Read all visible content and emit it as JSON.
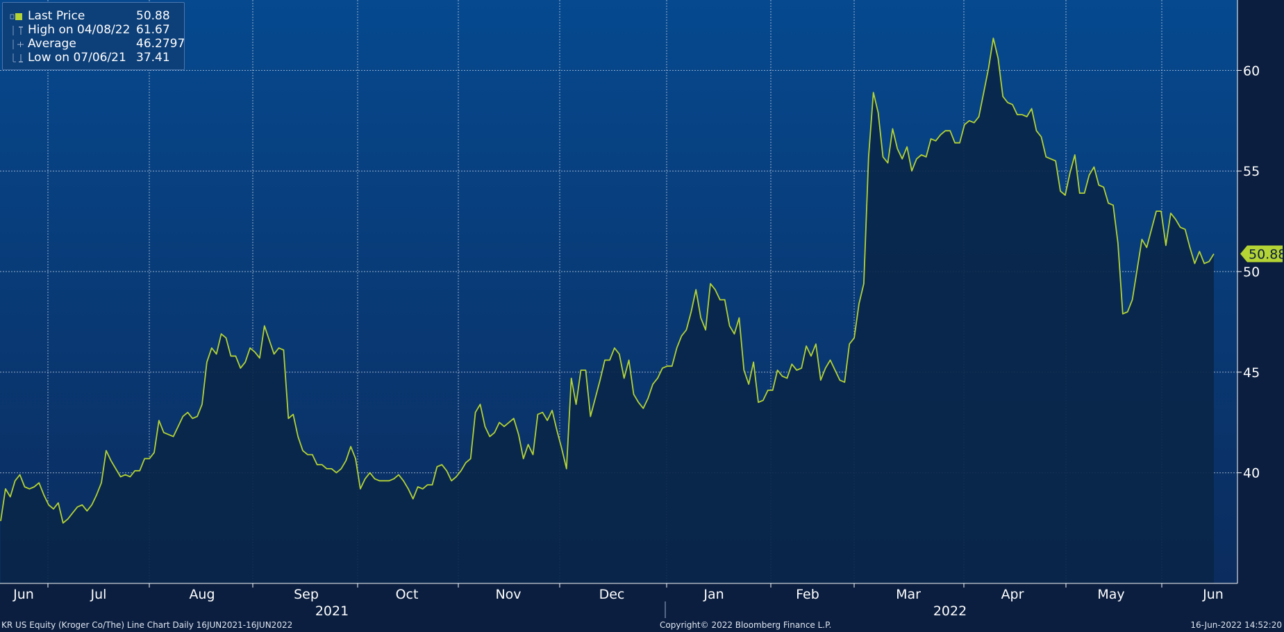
{
  "legend": {
    "rows": [
      {
        "label": "Last Price",
        "value": "50.88",
        "symbol": "square"
      },
      {
        "label": "High on 04/08/22",
        "value": "61.67",
        "symbol": "high"
      },
      {
        "label": "Average",
        "value": "46.2797",
        "symbol": "average"
      },
      {
        "label": "Low on 07/06/21",
        "value": "37.41",
        "symbol": "low"
      }
    ]
  },
  "footer": {
    "left": "KR US Equity (Kroger Co/The) Line Chart  Daily 16JUN2021-16JUN2022",
    "center": "Copyright© 2022 Bloomberg Finance L.P.",
    "right": "16-Jun-2022 14:52:20"
  },
  "colors": {
    "background": "#0b1e3f",
    "plot_top": "#06498f",
    "plot_bottom": "#0b2c5e",
    "line": "#b4d334",
    "fill": "#0a2649"
  },
  "chart_data": {
    "type": "area",
    "ylim": [
      34.5,
      63.5
    ],
    "yticks": [
      40,
      45,
      50,
      55,
      60
    ],
    "grid": true,
    "legend_position": "top-left",
    "last_price_label": "50.88",
    "month_labels": [
      "Jun",
      "Jul",
      "Aug",
      "Sep",
      "Oct",
      "Nov",
      "Dec",
      "Jan",
      "Feb",
      "Mar",
      "Apr",
      "May",
      "Jun"
    ],
    "year_labels": [
      "2021",
      "2022"
    ],
    "series": [
      {
        "values": [
          37.6,
          39.2,
          38.8,
          39.6,
          39.9,
          39.3,
          39.2,
          39.3,
          39.5,
          38.9,
          38.4,
          38.2,
          38.5,
          37.5,
          37.7,
          38.0,
          38.3,
          38.4,
          38.1,
          38.4,
          38.9,
          39.5,
          41.1,
          40.6,
          40.2,
          39.8,
          39.9,
          39.8,
          40.1,
          40.1,
          40.7,
          40.7,
          41.0,
          42.6,
          42.0,
          41.9,
          41.8,
          42.3,
          42.8,
          43.0,
          42.7,
          42.8,
          43.4,
          45.5,
          46.2,
          45.9,
          46.9,
          46.7,
          45.8,
          45.8,
          45.2,
          45.5,
          46.2,
          46.0,
          45.7,
          47.3,
          46.6,
          45.9,
          46.2,
          46.1,
          42.7,
          42.9,
          41.8,
          41.1,
          40.9,
          40.9,
          40.4,
          40.4,
          40.2,
          40.2,
          40.0,
          40.2,
          40.6,
          41.3,
          40.7,
          39.2,
          39.7,
          40.0,
          39.7,
          39.6,
          39.6,
          39.6,
          39.7,
          39.9,
          39.6,
          39.2,
          38.7,
          39.3,
          39.2,
          39.4,
          39.4,
          40.3,
          40.4,
          40.1,
          39.6,
          39.8,
          40.1,
          40.5,
          40.7,
          43.0,
          43.4,
          42.3,
          41.8,
          42.0,
          42.5,
          42.3,
          42.5,
          42.7,
          41.9,
          40.7,
          41.4,
          40.9,
          42.9,
          43.0,
          42.6,
          43.1,
          42.1,
          41.2,
          40.2,
          44.7,
          43.4,
          45.1,
          45.1,
          42.8,
          43.7,
          44.6,
          45.6,
          45.6,
          46.2,
          45.9,
          44.7,
          45.6,
          43.9,
          43.5,
          43.2,
          43.7,
          44.4,
          44.7,
          45.2,
          45.3,
          45.3,
          46.2,
          46.8,
          47.1,
          48.0,
          49.1,
          47.7,
          47.1,
          49.4,
          49.1,
          48.6,
          48.6,
          47.3,
          46.9,
          47.7,
          45.1,
          44.4,
          45.5,
          43.5,
          43.6,
          44.1,
          44.1,
          45.1,
          44.8,
          44.7,
          45.4,
          45.1,
          45.2,
          46.3,
          45.8,
          46.4,
          44.6,
          45.2,
          45.6,
          45.1,
          44.6,
          44.5,
          46.4,
          46.7,
          48.4,
          49.4,
          55.7,
          58.9,
          57.9,
          55.7,
          55.4,
          57.1,
          56.1,
          55.6,
          56.2,
          55.0,
          55.6,
          55.8,
          55.7,
          56.6,
          56.5,
          56.8,
          57.0,
          57.0,
          56.4,
          56.4,
          57.3,
          57.5,
          57.4,
          57.7,
          58.9,
          60.1,
          61.6,
          60.6,
          58.7,
          58.4,
          58.3,
          57.8,
          57.8,
          57.7,
          58.1,
          57.0,
          56.7,
          55.7,
          55.6,
          55.5,
          54.0,
          53.8,
          54.9,
          55.8,
          53.9,
          53.9,
          54.8,
          55.2,
          54.3,
          54.2,
          53.4,
          53.3,
          51.4,
          47.9,
          48.0,
          48.6,
          50.1,
          51.6,
          51.2,
          52.1,
          53.0,
          53.0,
          51.3,
          52.9,
          52.6,
          52.2,
          52.1,
          51.2,
          50.4,
          51.0,
          50.4,
          50.5,
          50.88
        ]
      }
    ]
  }
}
